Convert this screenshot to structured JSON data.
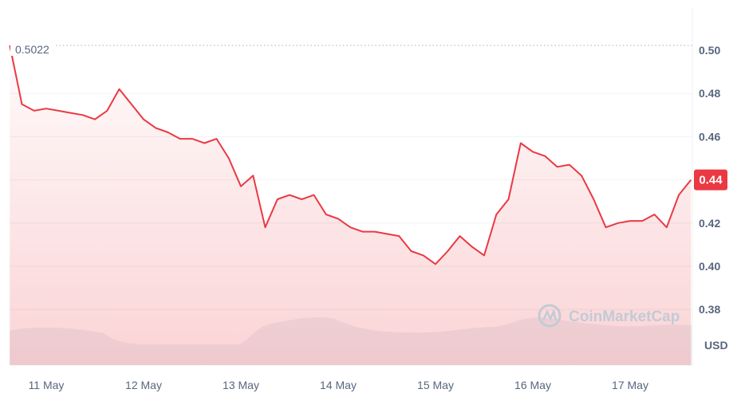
{
  "chart_data": {
    "type": "area",
    "currency_label": "USD",
    "start_price_label": "0.5022",
    "current_price_label": "0.44",
    "watermark": "CoinMarketCap",
    "ylim": [
      0.37,
      0.505
    ],
    "y_ticks": [
      "0.50",
      "0.48",
      "0.46",
      "0.44",
      "0.42",
      "0.40",
      "0.38"
    ],
    "x_ticks": [
      "11 May",
      "12 May",
      "13 May",
      "14 May",
      "15 May",
      "16 May",
      "17 May"
    ],
    "grid": true,
    "colors": {
      "line": "#ea3943",
      "badge": "#ea3943",
      "axis_text": "#58667e",
      "volume": "#eff2f5"
    },
    "x": [
      "10 May 15:00",
      "10 May 18:00",
      "10 May 21:00",
      "11 May 00:00",
      "11 May 03:00",
      "11 May 06:00",
      "11 May 09:00",
      "11 May 12:00",
      "11 May 15:00",
      "11 May 18:00",
      "11 May 21:00",
      "12 May 00:00",
      "12 May 03:00",
      "12 May 06:00",
      "12 May 09:00",
      "12 May 12:00",
      "12 May 15:00",
      "12 May 18:00",
      "12 May 21:00",
      "13 May 00:00",
      "13 May 03:00",
      "13 May 06:00",
      "13 May 09:00",
      "13 May 12:00",
      "13 May 15:00",
      "13 May 18:00",
      "13 May 21:00",
      "14 May 00:00",
      "14 May 03:00",
      "14 May 06:00",
      "14 May 09:00",
      "14 May 12:00",
      "14 May 15:00",
      "14 May 18:00",
      "14 May 21:00",
      "15 May 00:00",
      "15 May 03:00",
      "15 May 06:00",
      "15 May 09:00",
      "15 May 12:00",
      "15 May 15:00",
      "15 May 18:00",
      "15 May 21:00",
      "16 May 00:00",
      "16 May 03:00",
      "16 May 06:00",
      "16 May 09:00",
      "16 May 12:00",
      "16 May 15:00",
      "16 May 18:00",
      "16 May 21:00",
      "17 May 00:00",
      "17 May 03:00",
      "17 May 06:00",
      "17 May 09:00",
      "17 May 12:00",
      "17 May 15:00"
    ],
    "values": [
      0.5022,
      0.475,
      0.472,
      0.473,
      0.472,
      0.471,
      0.47,
      0.468,
      0.472,
      0.482,
      0.475,
      0.468,
      0.464,
      0.462,
      0.459,
      0.459,
      0.457,
      0.459,
      0.45,
      0.437,
      0.442,
      0.418,
      0.431,
      0.433,
      0.431,
      0.433,
      0.424,
      0.422,
      0.418,
      0.416,
      0.416,
      0.415,
      0.414,
      0.407,
      0.405,
      0.401,
      0.407,
      0.414,
      0.409,
      0.405,
      0.424,
      0.431,
      0.457,
      0.453,
      0.451,
      0.446,
      0.447,
      0.442,
      0.431,
      0.418,
      0.42,
      0.421,
      0.421,
      0.424,
      0.418,
      0.433,
      0.44
    ]
  }
}
